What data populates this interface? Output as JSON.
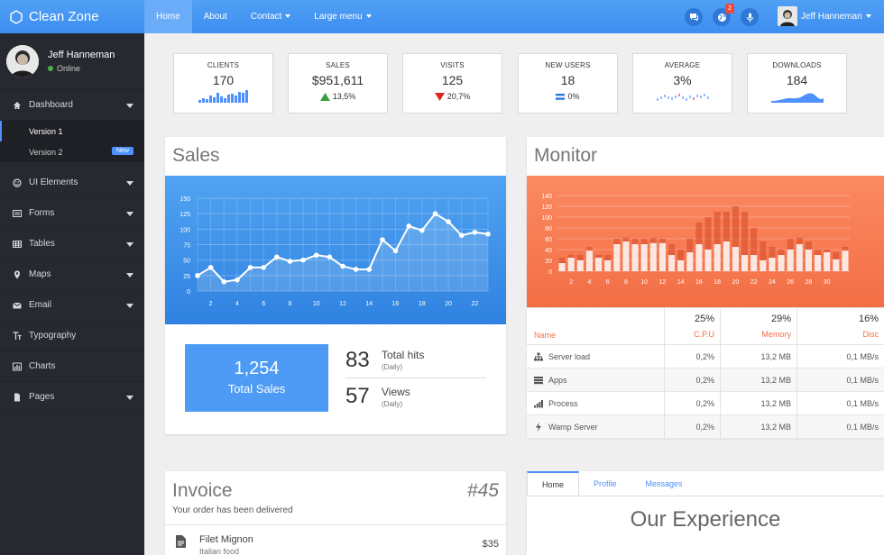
{
  "app": {
    "title": "Clean Zone"
  },
  "nav": {
    "items": [
      {
        "label": "Home"
      },
      {
        "label": "About"
      },
      {
        "label": "Contact"
      },
      {
        "label": "Large menu"
      }
    ]
  },
  "topbar": {
    "notification_count": "2",
    "user_name": "Jeff Hanneman"
  },
  "sidebar": {
    "user_name": "Jeff Hanneman",
    "status": "Online",
    "menu": [
      {
        "label": "Dashboard",
        "icon": "home-icon"
      },
      {
        "label": "UI Elements",
        "icon": "smile-icon"
      },
      {
        "label": "Forms",
        "icon": "form-icon"
      },
      {
        "label": "Tables",
        "icon": "table-icon"
      },
      {
        "label": "Maps",
        "icon": "map-marker-icon"
      },
      {
        "label": "Email",
        "icon": "envelope-icon"
      },
      {
        "label": "Typography",
        "icon": "text-icon"
      },
      {
        "label": "Charts",
        "icon": "bar-chart-icon"
      },
      {
        "label": "Pages",
        "icon": "file-icon"
      }
    ],
    "submenu": [
      {
        "label": "Version 1"
      },
      {
        "label": "Version 2",
        "badge": "New"
      }
    ]
  },
  "stats": [
    {
      "label": "CLIENTS",
      "value": "170",
      "footer": ""
    },
    {
      "label": "SALES",
      "value": "$951,611",
      "footer": "13,5%"
    },
    {
      "label": "VISITS",
      "value": "125",
      "footer": "20,7%"
    },
    {
      "label": "NEW USERS",
      "value": "18",
      "footer": "0%"
    },
    {
      "label": "AVERAGE",
      "value": "3%",
      "footer": ""
    },
    {
      "label": "DOWNLOADS",
      "value": "184",
      "footer": ""
    }
  ],
  "colors": {
    "accent": "#4d90fe",
    "up": "#3a9d3a",
    "down": "#d9291f",
    "monitor": "#f36e45"
  },
  "sales": {
    "title": "Sales",
    "total_value": "1,254",
    "total_label": "Total Sales",
    "hits_value": "83",
    "hits_label": "Total hits",
    "hits_sub": "(Daily)",
    "views_value": "57",
    "views_label": "Views",
    "views_sub": "(Daily)"
  },
  "monitor": {
    "title": "Monitor",
    "name_header": "Name",
    "cols": [
      {
        "pct": "25%",
        "label": "C.P.U"
      },
      {
        "pct": "29%",
        "label": "Memory"
      },
      {
        "pct": "16%",
        "label": "Disc"
      }
    ],
    "rows": [
      {
        "name": "Server load",
        "icon": "sitemap-icon",
        "cpu": "0,2%",
        "mem": "13,2 MB",
        "disc": "0,1 MB/s"
      },
      {
        "name": "Apps",
        "icon": "server-icon",
        "cpu": "0,2%",
        "mem": "13,2 MB",
        "disc": "0,1 MB/s"
      },
      {
        "name": "Process",
        "icon": "signal-icon",
        "cpu": "0,2%",
        "mem": "13,2 MB",
        "disc": "0,1 MB/s"
      },
      {
        "name": "Wamp Server",
        "icon": "bolt-icon",
        "cpu": "0,2%",
        "mem": "13,2 MB",
        "disc": "0,1 MB/s"
      }
    ]
  },
  "invoice": {
    "title": "Invoice",
    "number": "#45",
    "subtitle": "Your order has been delivered",
    "item_name": "Filet Mignon",
    "item_sub": "Italian food",
    "item_price": "$35"
  },
  "tabs": {
    "items": [
      {
        "label": "Home"
      },
      {
        "label": "Profile"
      },
      {
        "label": "Messages"
      }
    ],
    "heading": "Our Experience"
  },
  "chart_data": [
    {
      "type": "line",
      "x": [
        1,
        2,
        3,
        4,
        5,
        6,
        7,
        8,
        9,
        10,
        11,
        12,
        13,
        14,
        15,
        16,
        17,
        18,
        19,
        20,
        21,
        22,
        23
      ],
      "values": [
        25,
        38,
        15,
        18,
        38,
        38,
        55,
        48,
        50,
        58,
        55,
        40,
        35,
        35,
        83,
        65,
        105,
        98,
        125,
        112,
        90,
        95,
        92
      ],
      "ylim": [
        0,
        150
      ],
      "yticks": [
        0,
        25,
        50,
        75,
        100,
        125,
        150
      ],
      "xticks": [
        2,
        4,
        6,
        8,
        10,
        12,
        14,
        16,
        18,
        20,
        22
      ]
    },
    {
      "type": "bar",
      "x": [
        1,
        2,
        3,
        4,
        5,
        6,
        7,
        8,
        9,
        10,
        11,
        12,
        13,
        14,
        15,
        16,
        17,
        18,
        19,
        20,
        21,
        22,
        23,
        24,
        25,
        26,
        27,
        28,
        29,
        30,
        31,
        32
      ],
      "series": [
        {
          "values": [
            15,
            25,
            20,
            38,
            25,
            20,
            50,
            55,
            50,
            50,
            52,
            52,
            30,
            20,
            35,
            50,
            40,
            50,
            55,
            45,
            30,
            30,
            20,
            25,
            30,
            40,
            50,
            40,
            30,
            35,
            22,
            38
          ]
        },
        {
          "values": [
            25,
            30,
            30,
            45,
            30,
            30,
            60,
            62,
            60,
            60,
            62,
            60,
            50,
            40,
            60,
            90,
            100,
            110,
            110,
            120,
            110,
            80,
            55,
            45,
            40,
            60,
            62,
            55,
            40,
            40,
            35,
            45
          ]
        }
      ],
      "ylim": [
        0,
        140
      ],
      "yticks": [
        0,
        20,
        40,
        60,
        80,
        100,
        120,
        140
      ],
      "xticks": [
        2,
        4,
        6,
        8,
        10,
        12,
        14,
        16,
        18,
        20,
        22,
        24,
        26,
        28,
        30
      ]
    }
  ]
}
